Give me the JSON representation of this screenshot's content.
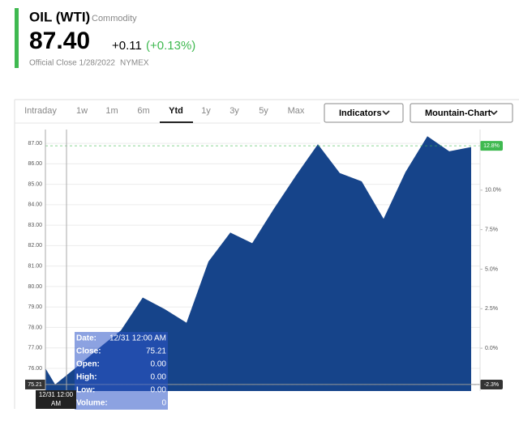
{
  "header": {
    "title": "OIL (WTI)",
    "category": "Commodity",
    "price": "87.40",
    "change": "+0.11",
    "change_percent": "(+0.13%)",
    "close_note": "Official Close 1/28/2022",
    "exchange": "NYMEX"
  },
  "tabs": [
    "Intraday",
    "1w",
    "1m",
    "6m",
    "Ytd",
    "1y",
    "3y",
    "5y",
    "Max"
  ],
  "selected_tab": "Ytd",
  "buttons": [
    "Indicators",
    "Mountain-Chart"
  ],
  "chart_data": {
    "type": "area",
    "color": "#16448a",
    "categories": [
      null,
      "12/31 12:00 AM",
      null,
      null,
      null,
      null,
      null,
      null,
      null,
      null,
      null,
      null,
      null,
      null,
      null,
      null,
      null,
      null,
      null,
      null,
      null
    ],
    "values": [
      76.99,
      75.21,
      76.08,
      76.99,
      77.85,
      79.46,
      78.9,
      78.23,
      81.22,
      82.64,
      82.12,
      83.82,
      85.43,
      86.96,
      85.55,
      85.14,
      83.31,
      85.6,
      87.35,
      86.61,
      86.82
    ],
    "ylim": [
      74.89,
      87.28
    ],
    "yticks": [
      {
        "value": 76,
        "label": "76.00"
      },
      {
        "value": 77,
        "label": "77.00"
      },
      {
        "value": 78,
        "label": "78.00"
      },
      {
        "value": 79,
        "label": "79.00"
      },
      {
        "value": 80,
        "label": "80.00"
      },
      {
        "value": 81,
        "label": "81.00"
      },
      {
        "value": 82,
        "label": "82.00"
      },
      {
        "value": 83,
        "label": "83.00"
      },
      {
        "value": 84,
        "label": "84.00"
      },
      {
        "value": 85,
        "label": "85.00"
      },
      {
        "value": 86,
        "label": "86.00"
      },
      {
        "value": 87,
        "label": "87.00"
      }
    ],
    "y2lim": [
      -2.71,
      13.32
    ],
    "y2ticks": [
      {
        "value": 0,
        "label": "0.0%"
      },
      {
        "value": 2.5,
        "label": "2.5%"
      },
      {
        "value": 5,
        "label": "5.0%"
      },
      {
        "value": 7.5,
        "label": "7.5%"
      },
      {
        "value": 10,
        "label": "10.0%"
      }
    ],
    "grid": true,
    "crosshair_value": 75.21,
    "badges": [
      {
        "value": 12.8,
        "label": "12.8%",
        "color": "#3fb950"
      },
      {
        "value": -2.3,
        "label": "-2.3%",
        "color": "#333333"
      }
    ]
  },
  "tooltip": {
    "rows": [
      [
        "Date:",
        "12/31 12:00 AM"
      ],
      [
        "Close:",
        "75.21"
      ],
      [
        "Open:",
        "0.00"
      ],
      [
        "High:",
        "0.00"
      ],
      [
        "Low:",
        "0.00"
      ],
      [
        "Volume:",
        "0"
      ]
    ]
  }
}
